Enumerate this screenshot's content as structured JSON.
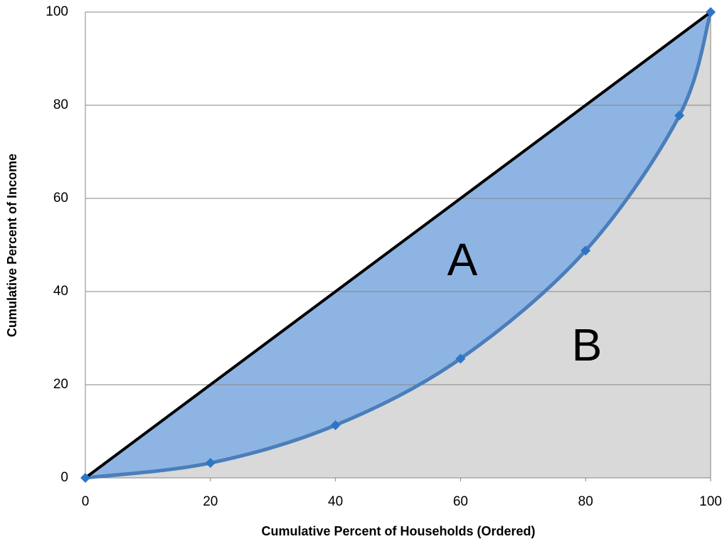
{
  "chart_data": {
    "type": "line",
    "xlabel": "Cumulative Percent of Households (Ordered)",
    "ylabel": "Cumulative Percent of Income",
    "series": [
      {
        "color": "#4a7ebb",
        "marker": "diamond",
        "marker_color": "#2e75c6",
        "fill": "#d9d9d9",
        "x": [
          0,
          20,
          40,
          60,
          80,
          95,
          100
        ],
        "values": [
          0,
          3.2,
          11.3,
          25.6,
          48.8,
          77.8,
          100
        ]
      },
      {
        "color": "#000000",
        "fill": "#8eb4e3",
        "x": [
          0,
          100
        ],
        "values": [
          0,
          100
        ]
      }
    ],
    "annotations": [
      "A",
      "B"
    ],
    "xlim": [
      0,
      100
    ],
    "ylim": [
      0,
      100
    ],
    "xticks": [
      0,
      20,
      40,
      60,
      80,
      100
    ],
    "yticks": [
      0,
      20,
      40,
      60,
      80,
      100
    ],
    "grid": true
  }
}
